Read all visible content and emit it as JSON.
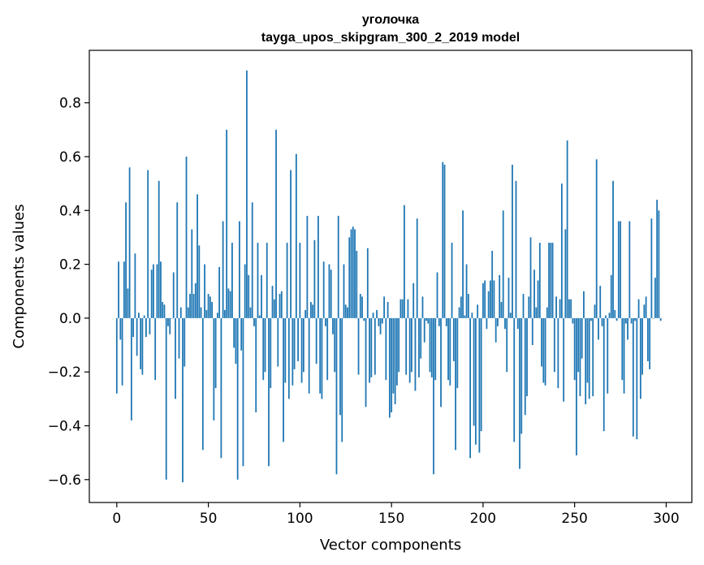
{
  "chart_data": {
    "type": "bar",
    "title_lines": [
      "уголочка",
      "tayga_upos_skipgram_300_2_2019 model"
    ],
    "xlabel": "Vector components",
    "ylabel": "Components values",
    "xlim": [
      -15,
      314
    ],
    "ylim": [
      -0.685,
      0.995
    ],
    "xticks": [
      0,
      50,
      100,
      150,
      200,
      250,
      300
    ],
    "xtick_labels": [
      "0",
      "50",
      "100",
      "150",
      "200",
      "250",
      "300"
    ],
    "yticks": [
      -0.6,
      -0.4,
      -0.2,
      0.0,
      0.2,
      0.4,
      0.6,
      0.8
    ],
    "ytick_labels": [
      "−0.6",
      "−0.4",
      "−0.2",
      "0.0",
      "0.2",
      "0.4",
      "0.6",
      "0.8"
    ],
    "bar_color": "#1f77b4",
    "grid": false,
    "values": [
      -0.28,
      0.21,
      -0.08,
      -0.25,
      0.21,
      0.43,
      0.11,
      0.56,
      -0.38,
      -0.07,
      0.24,
      -0.14,
      0.02,
      -0.19,
      -0.21,
      0.01,
      -0.07,
      0.55,
      -0.06,
      0.18,
      0.2,
      -0.23,
      0.2,
      0.51,
      0.21,
      0.06,
      0.05,
      -0.6,
      -0.03,
      -0.06,
      0.0,
      0.17,
      -0.3,
      0.43,
      -0.15,
      0.04,
      -0.61,
      -0.18,
      0.6,
      0.04,
      0.09,
      0.33,
      0.09,
      0.13,
      0.46,
      0.27,
      0.04,
      -0.49,
      0.2,
      0.03,
      0.09,
      0.08,
      0.06,
      -0.38,
      -0.26,
      0.02,
      0.19,
      -0.52,
      0.36,
      0.03,
      0.7,
      0.11,
      0.1,
      0.28,
      -0.11,
      -0.17,
      -0.6,
      0.36,
      -0.12,
      -0.55,
      0.2,
      0.92,
      0.16,
      0.04,
      0.43,
      -0.03,
      -0.35,
      0.28,
      0.01,
      0.16,
      -0.23,
      -0.2,
      0.28,
      -0.55,
      -0.26,
      0.12,
      0.07,
      0.7,
      -0.18,
      0.09,
      0.1,
      -0.46,
      -0.24,
      0.28,
      -0.3,
      0.55,
      -0.25,
      -0.19,
      0.61,
      -0.16,
      0.28,
      -0.24,
      -0.2,
      0.03,
      0.38,
      -0.28,
      0.06,
      0.05,
      0.29,
      -0.17,
      0.38,
      -0.28,
      -0.3,
      0.21,
      -0.03,
      -0.23,
      0.2,
      0.18,
      -0.06,
      -0.2,
      -0.58,
      0.38,
      -0.36,
      -0.46,
      0.2,
      0.05,
      0.04,
      0.3,
      0.33,
      0.34,
      0.33,
      0.25,
      -0.21,
      0.09,
      0.08,
      -0.01,
      -0.33,
      0.26,
      -0.24,
      -0.22,
      0.02,
      -0.21,
      0.03,
      -0.03,
      -0.06,
      -0.02,
      0.08,
      -0.23,
      0.06,
      -0.37,
      -0.35,
      -0.28,
      -0.32,
      -0.25,
      -0.2,
      0.07,
      0.07,
      0.42,
      -0.21,
      0.07,
      -0.24,
      -0.2,
      0.13,
      -0.27,
      0.37,
      -0.22,
      -0.15,
      0.08,
      -0.09,
      -0.01,
      -0.02,
      -0.2,
      -0.22,
      -0.58,
      -0.23,
      0.17,
      -0.03,
      -0.33,
      0.58,
      0.57,
      -0.03,
      -0.23,
      -0.25,
      0.28,
      -0.16,
      -0.49,
      -0.26,
      0.04,
      0.08,
      0.4,
      0.01,
      0.2,
      0.09,
      -0.52,
      0.02,
      -0.4,
      -0.47,
      0.05,
      -0.5,
      -0.42,
      0.13,
      0.14,
      -0.04,
      0.1,
      0.14,
      0.25,
      0.14,
      -0.09,
      -0.03,
      0.16,
      0.06,
      0.4,
      -0.04,
      -0.2,
      0.15,
      0.02,
      0.57,
      -0.46,
      0.51,
      -0.04,
      -0.56,
      -0.43,
      0.09,
      -0.36,
      -0.29,
      0.08,
      0.3,
      -0.1,
      0.18,
      0.04,
      0.14,
      0.28,
      -0.18,
      -0.24,
      -0.25,
      0.04,
      0.28,
      0.28,
      0.28,
      -0.2,
      0.08,
      -0.26,
      0.07,
      0.5,
      -0.31,
      0.33,
      0.66,
      0.07,
      0.07,
      -0.02,
      -0.23,
      -0.51,
      -0.2,
      -0.29,
      -0.15,
      0.1,
      -0.32,
      -0.24,
      -0.3,
      -0.01,
      -0.29,
      0.05,
      0.59,
      -0.08,
      0.12,
      -0.03,
      -0.42,
      0.01,
      -0.28,
      0.02,
      0.16,
      0.51,
      0.03,
      -0.01,
      0.36,
      0.36,
      -0.23,
      -0.28,
      -0.02,
      -0.08,
      0.36,
      -0.02,
      -0.44,
      -0.01,
      -0.45,
      0.07,
      -0.3,
      -0.21,
      0.05,
      0.08,
      -0.16,
      -0.19,
      0.37,
      0.0,
      0.15,
      0.44,
      0.4,
      -0.01
    ]
  }
}
